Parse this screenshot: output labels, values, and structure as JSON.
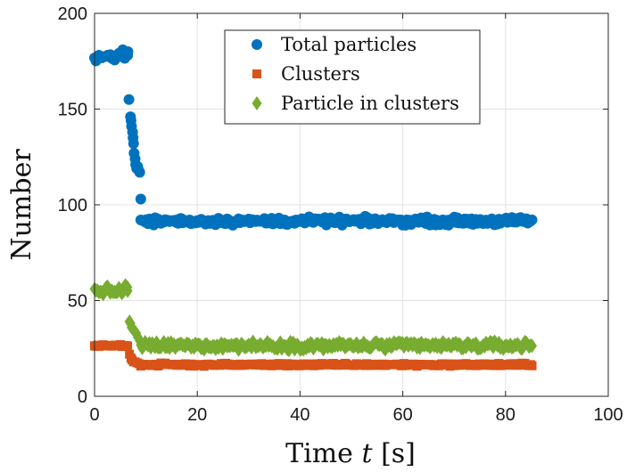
{
  "chart_data": {
    "type": "scatter",
    "title": "",
    "xlabel": "Time",
    "xlabel_var": "t",
    "xlabel_unit": "[s]",
    "ylabel": "Number",
    "xlim": [
      0,
      100
    ],
    "ylim": [
      0,
      200
    ],
    "xticks": [
      0,
      20,
      40,
      60,
      80,
      100
    ],
    "yticks": [
      0,
      50,
      100,
      150,
      200
    ],
    "grid": true,
    "legend_position": "top-right",
    "series": [
      {
        "name": "Total particles",
        "color": "#0072BD",
        "marker": "circle",
        "segments": [
          {
            "x_start": 0,
            "x_end": 6.6,
            "y_mean": 177.5,
            "jitter": 1.8
          },
          {
            "x_start": 9.0,
            "x_end": 85.3,
            "y_mean": 91.5,
            "jitter": 1.6
          }
        ],
        "points": [
          [
            5.5,
            181
          ],
          [
            5.8,
            180
          ],
          [
            6.2,
            179
          ],
          [
            6.5,
            180
          ],
          [
            6.7,
            155
          ],
          [
            7.0,
            146
          ],
          [
            7.1,
            144
          ],
          [
            7.2,
            141
          ],
          [
            7.4,
            138
          ],
          [
            7.5,
            135
          ],
          [
            7.6,
            132
          ],
          [
            7.7,
            127
          ],
          [
            7.9,
            124
          ],
          [
            8.0,
            121
          ],
          [
            8.2,
            119
          ],
          [
            8.4,
            120
          ],
          [
            8.6,
            118
          ],
          [
            8.8,
            117
          ],
          [
            9.0,
            103
          ]
        ]
      },
      {
        "name": "Clusters",
        "color": "#D95319",
        "marker": "square",
        "segments": [
          {
            "x_start": 0,
            "x_end": 6.6,
            "y_mean": 26.5,
            "jitter": 0.6
          },
          {
            "x_start": 9.0,
            "x_end": 85.3,
            "y_mean": 16.5,
            "jitter": 0.6
          }
        ],
        "points": [
          [
            6.8,
            22
          ],
          [
            7.1,
            20
          ],
          [
            7.3,
            19
          ],
          [
            7.6,
            18
          ],
          [
            7.9,
            18
          ],
          [
            8.3,
            17.5
          ],
          [
            8.7,
            17
          ]
        ]
      },
      {
        "name": "Particle in clusters",
        "color": "#77AC30",
        "marker": "diamond",
        "segments": [
          {
            "x_start": 0,
            "x_end": 6.6,
            "y_mean": 55,
            "jitter": 1.8
          },
          {
            "x_start": 9.0,
            "x_end": 85.3,
            "y_mean": 26.5,
            "jitter": 1.7
          }
        ],
        "points": [
          [
            6.0,
            58
          ],
          [
            6.4,
            57
          ],
          [
            6.8,
            39
          ],
          [
            7.0,
            38
          ],
          [
            7.2,
            36
          ],
          [
            7.5,
            35
          ],
          [
            7.8,
            34
          ],
          [
            8.1,
            33
          ],
          [
            8.4,
            31
          ],
          [
            8.8,
            29
          ]
        ]
      }
    ]
  }
}
